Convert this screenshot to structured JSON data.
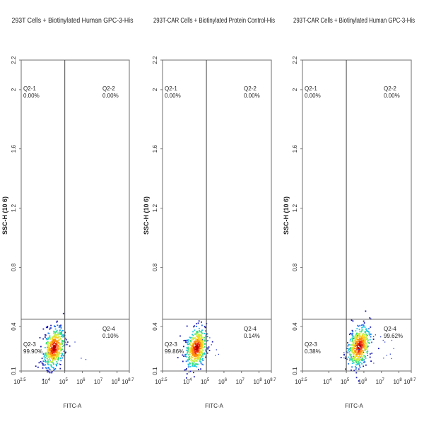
{
  "chart_data": [
    {
      "type": "scatter",
      "subtype": "flow-cytometry-density-plot",
      "title": "293T Cells + Biotinylated Human GPC-3-His",
      "xlabel": "FITC-A",
      "ylabel": "SSC-H (10 6)",
      "x_scale": "log10",
      "x_ticks": [
        "10 2.5",
        "10 4",
        "10 5",
        "10 6",
        "10 7",
        "10 8",
        "10 8.7"
      ],
      "y_ticks": [
        "0.1",
        "0.4",
        "0.8",
        "1.2",
        "1.6",
        "2",
        "2.2"
      ],
      "xlim_log10": [
        2.5,
        8.7
      ],
      "ylim": [
        0.1,
        2.2
      ],
      "gate": {
        "x_log10": 5.0,
        "y": 0.45
      },
      "population": {
        "x_log10": 4.35,
        "y": 0.26,
        "sx": 0.3,
        "sy": 0.065,
        "skew": 0.6
      },
      "scatter_outliers": 10,
      "quadrants": [
        {
          "id": "Q2-1",
          "value": "0.00%"
        },
        {
          "id": "Q2-2",
          "value": "0.00%"
        },
        {
          "id": "Q2-3",
          "value": "99.90%"
        },
        {
          "id": "Q2-4",
          "value": "0.10%"
        }
      ]
    },
    {
      "type": "scatter",
      "subtype": "flow-cytometry-density-plot",
      "title": "293T-CAR Cells + Biotinylated Protein Control-His",
      "xlabel": "FITC-A",
      "ylabel": "SSC-H (10 6)",
      "x_scale": "log10",
      "x_ticks": [
        "10 2.5",
        "10 4",
        "10 5",
        "10 6",
        "10 7",
        "10 8",
        "10 8.7"
      ],
      "y_ticks": [
        "0.1",
        "0.4",
        "0.8",
        "1.2",
        "1.6",
        "2",
        "2.2"
      ],
      "xlim_log10": [
        2.5,
        8.7
      ],
      "ylim": [
        0.1,
        2.2
      ],
      "gate": {
        "x_log10": 5.0,
        "y": 0.45
      },
      "population": {
        "x_log10": 4.4,
        "y": 0.26,
        "sx": 0.3,
        "sy": 0.065,
        "skew": 0.6
      },
      "scatter_outliers": 10,
      "quadrants": [
        {
          "id": "Q2-1",
          "value": "0.00%"
        },
        {
          "id": "Q2-2",
          "value": "0.00%"
        },
        {
          "id": "Q2-3",
          "value": "99.86%"
        },
        {
          "id": "Q2-4",
          "value": "0.14%"
        }
      ]
    },
    {
      "type": "scatter",
      "subtype": "flow-cytometry-density-plot",
      "title": "293T-CAR Cells + Biotinylated Human GPC-3-His",
      "xlabel": "FITC-A",
      "ylabel": "SSC-H (10 6)",
      "x_scale": "log10",
      "x_ticks": [
        "10 2.5",
        "10 4",
        "10 5",
        "10 6",
        "10 7",
        "10 8",
        "10 8.7"
      ],
      "y_ticks": [
        "0.1",
        "0.4",
        "0.8",
        "1.2",
        "1.6",
        "2",
        "2.2"
      ],
      "xlim_log10": [
        2.5,
        8.7
      ],
      "ylim": [
        0.1,
        2.2
      ],
      "gate": {
        "x_log10": 5.0,
        "y": 0.45
      },
      "population": {
        "x_log10": 5.7,
        "y": 0.27,
        "sx": 0.32,
        "sy": 0.065,
        "skew": 0.6
      },
      "scatter_outliers": 30,
      "quadrants": [
        {
          "id": "Q2-1",
          "value": "0.00%"
        },
        {
          "id": "Q2-2",
          "value": "0.00%"
        },
        {
          "id": "Q2-3",
          "value": "0.38%"
        },
        {
          "id": "Q2-4",
          "value": "99.62%"
        }
      ]
    }
  ]
}
